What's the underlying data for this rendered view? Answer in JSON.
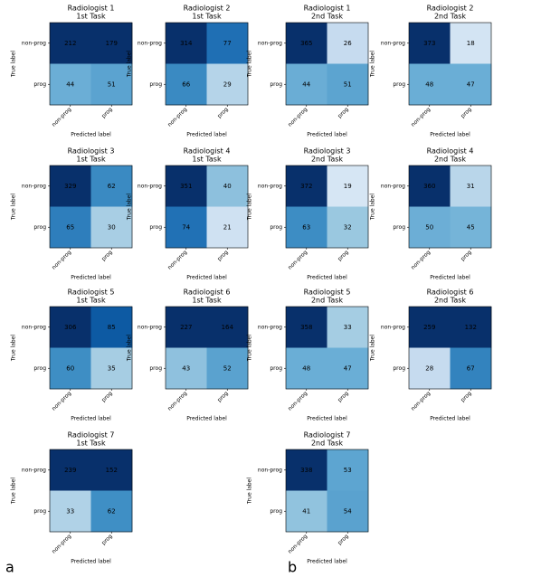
{
  "panel_labels": [
    "a",
    "b"
  ],
  "chart_data": [
    {
      "type": "heatmap",
      "title": "Radiologist 1",
      "subtitle": "1st Task",
      "xlabel": "Predicted label",
      "ylabel": "True label",
      "xcategories": [
        "non-prog",
        "prog"
      ],
      "ycategories": [
        "non-prog",
        "prog"
      ],
      "values": [
        [
          212,
          179
        ],
        [
          44,
          51
        ]
      ],
      "colors": [
        [
          "#08306b",
          "#08306b"
        ],
        [
          "#6baed6",
          "#5ba3d0"
        ]
      ]
    },
    {
      "type": "heatmap",
      "title": "Radiologist 2",
      "subtitle": "1st Task",
      "xlabel": "Predicted label",
      "ylabel": "True label",
      "xcategories": [
        "non-prog",
        "prog"
      ],
      "ycategories": [
        "non-prog",
        "prog"
      ],
      "values": [
        [
          314,
          77
        ],
        [
          66,
          29
        ]
      ],
      "colors": [
        [
          "#08306b",
          "#1f6fb4"
        ],
        [
          "#3a8ac2",
          "#b5d4e9"
        ]
      ]
    },
    {
      "type": "heatmap",
      "title": "Radiologist 3",
      "subtitle": "1st Task",
      "xlabel": "Predicted label",
      "ylabel": "True label",
      "xcategories": [
        "non-prog",
        "prog"
      ],
      "ycategories": [
        "non-prog",
        "prog"
      ],
      "values": [
        [
          329,
          62
        ],
        [
          65,
          30
        ]
      ],
      "colors": [
        [
          "#08306b",
          "#3a8ac2"
        ],
        [
          "#2e7ebc",
          "#a8cee4"
        ]
      ]
    },
    {
      "type": "heatmap",
      "title": "Radiologist 4",
      "subtitle": "1st Task",
      "xlabel": "Predicted label",
      "ylabel": "True label",
      "xcategories": [
        "non-prog",
        "prog"
      ],
      "ycategories": [
        "non-prog",
        "prog"
      ],
      "values": [
        [
          351,
          40
        ],
        [
          74,
          21
        ]
      ],
      "colors": [
        [
          "#08306b",
          "#8dc0dd"
        ],
        [
          "#2171b5",
          "#cfe1f2"
        ]
      ]
    },
    {
      "type": "heatmap",
      "title": "Radiologist 5",
      "subtitle": "1st Task",
      "xlabel": "Predicted label",
      "ylabel": "True label",
      "xcategories": [
        "non-prog",
        "prog"
      ],
      "ycategories": [
        "non-prog",
        "prog"
      ],
      "values": [
        [
          306,
          85
        ],
        [
          60,
          35
        ]
      ],
      "colors": [
        [
          "#08306b",
          "#0d5aa3"
        ],
        [
          "#3e8ec4",
          "#a6cde3"
        ]
      ]
    },
    {
      "type": "heatmap",
      "title": "Radiologist 6",
      "subtitle": "1st Task",
      "xlabel": "Predicted label",
      "ylabel": "True label",
      "xcategories": [
        "non-prog",
        "prog"
      ],
      "ycategories": [
        "non-prog",
        "prog"
      ],
      "values": [
        [
          227,
          164
        ],
        [
          43,
          52
        ]
      ],
      "colors": [
        [
          "#08306b",
          "#08306b"
        ],
        [
          "#8fc1de",
          "#5aa2cf"
        ]
      ]
    },
    {
      "type": "heatmap",
      "title": "Radiologist 7",
      "subtitle": "1st Task",
      "xlabel": "Predicted label",
      "ylabel": "True label",
      "xcategories": [
        "non-prog",
        "prog"
      ],
      "ycategories": [
        "non-prog",
        "prog"
      ],
      "values": [
        [
          239,
          152
        ],
        [
          33,
          62
        ]
      ],
      "colors": [
        [
          "#08306b",
          "#08306b"
        ],
        [
          "#b0d2e7",
          "#3f8fc5"
        ]
      ]
    },
    {
      "type": "heatmap",
      "title": "Radiologist 1",
      "subtitle": "2nd Task",
      "xlabel": "Predicted label",
      "ylabel": "True label",
      "xcategories": [
        "non-prog",
        "prog"
      ],
      "ycategories": [
        "non-prog",
        "prog"
      ],
      "values": [
        [
          365,
          26
        ],
        [
          44,
          51
        ]
      ],
      "colors": [
        [
          "#08306b",
          "#c6dbef"
        ],
        [
          "#6aadd5",
          "#5ca4d0"
        ]
      ]
    },
    {
      "type": "heatmap",
      "title": "Radiologist 2",
      "subtitle": "2nd Task",
      "xlabel": "Predicted label",
      "ylabel": "True label",
      "xcategories": [
        "non-prog",
        "prog"
      ],
      "ycategories": [
        "non-prog",
        "prog"
      ],
      "values": [
        [
          373,
          18
        ],
        [
          48,
          47
        ]
      ],
      "colors": [
        [
          "#08306b",
          "#d3e4f3"
        ],
        [
          "#6aaed6",
          "#6aaed6"
        ]
      ]
    },
    {
      "type": "heatmap",
      "title": "Radiologist 3",
      "subtitle": "2nd Task",
      "xlabel": "Predicted label",
      "ylabel": "True label",
      "xcategories": [
        "non-prog",
        "prog"
      ],
      "ycategories": [
        "non-prog",
        "prog"
      ],
      "values": [
        [
          372,
          19
        ],
        [
          63,
          32
        ]
      ],
      "colors": [
        [
          "#08306b",
          "#d6e6f4"
        ],
        [
          "#3d8dc4",
          "#9ac8e0"
        ]
      ]
    },
    {
      "type": "heatmap",
      "title": "Radiologist 4",
      "subtitle": "2nd Task",
      "xlabel": "Predicted label",
      "ylabel": "True label",
      "xcategories": [
        "non-prog",
        "prog"
      ],
      "ycategories": [
        "non-prog",
        "prog"
      ],
      "values": [
        [
          360,
          31
        ],
        [
          50,
          45
        ]
      ],
      "colors": [
        [
          "#08306b",
          "#b9d6ea"
        ],
        [
          "#6caed6",
          "#75b4d8"
        ]
      ]
    },
    {
      "type": "heatmap",
      "title": "Radiologist 5",
      "subtitle": "2nd Task",
      "xlabel": "Predicted label",
      "ylabel": "True label",
      "xcategories": [
        "non-prog",
        "prog"
      ],
      "ycategories": [
        "non-prog",
        "prog"
      ],
      "values": [
        [
          358,
          33
        ],
        [
          48,
          47
        ]
      ],
      "colors": [
        [
          "#08306b",
          "#a5cde3"
        ],
        [
          "#6aaed6",
          "#6aaed6"
        ]
      ]
    },
    {
      "type": "heatmap",
      "title": "Radiologist 6",
      "subtitle": "2nd Task",
      "xlabel": "Predicted label",
      "ylabel": "True label",
      "xcategories": [
        "non-prog",
        "prog"
      ],
      "ycategories": [
        "non-prog",
        "prog"
      ],
      "values": [
        [
          259,
          132
        ],
        [
          28,
          67
        ]
      ],
      "colors": [
        [
          "#08306b",
          "#08306b"
        ],
        [
          "#c6dbef",
          "#3383be"
        ]
      ]
    },
    {
      "type": "heatmap",
      "title": "Radiologist 7",
      "subtitle": "2nd Task",
      "xlabel": "Predicted label",
      "ylabel": "True label",
      "xcategories": [
        "non-prog",
        "prog"
      ],
      "ycategories": [
        "non-prog",
        "prog"
      ],
      "values": [
        [
          338,
          53
        ],
        [
          41,
          54
        ]
      ],
      "colors": [
        [
          "#08306b",
          "#5da5d1"
        ],
        [
          "#91c3de",
          "#5aa2cf"
        ]
      ]
    }
  ]
}
